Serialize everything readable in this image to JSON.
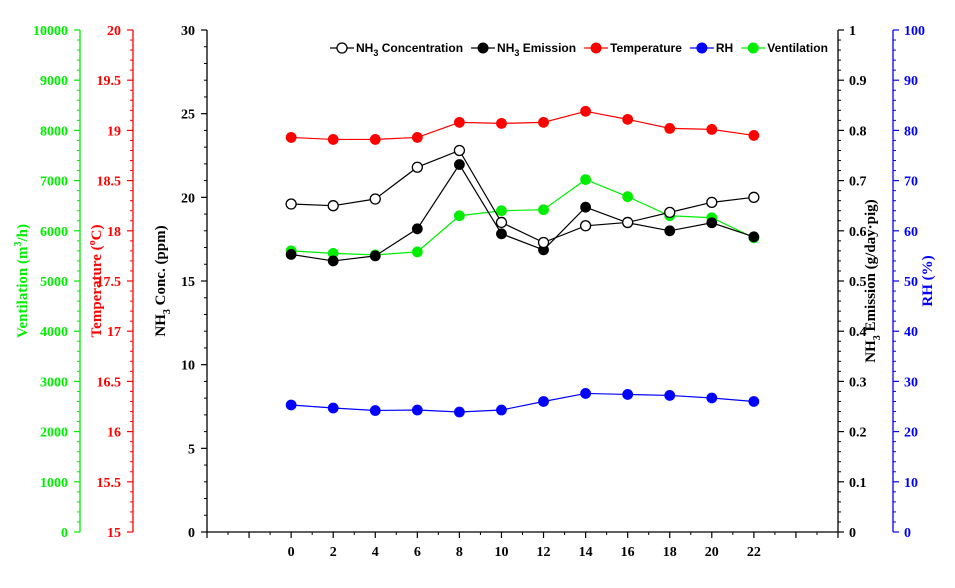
{
  "chart_data": {
    "type": "line",
    "x": [
      0,
      2,
      4,
      6,
      8,
      10,
      12,
      14,
      16,
      18,
      20,
      22
    ],
    "x_ticks": [
      "0",
      "2",
      "4",
      "6",
      "8",
      "10",
      "12",
      "14",
      "16",
      "18",
      "20",
      "22"
    ],
    "xlim": [
      -4,
      26
    ],
    "grid": false,
    "legend_placement": "top-right",
    "colors": {
      "concentration": "#000000",
      "emission": "#000000",
      "temperature": "#ff0000",
      "rh": "#0000ff",
      "ventilation": "#00ee00"
    },
    "axes": {
      "ventilation": {
        "label_main": "Ventilation (m",
        "label_sup": "3",
        "label_end": "/h)",
        "ylim": [
          0,
          10000
        ],
        "ticks": [
          "0",
          "1000",
          "2000",
          "3000",
          "4000",
          "5000",
          "6000",
          "7000",
          "8000",
          "9000",
          "10000"
        ]
      },
      "temperature": {
        "label_main": "Temperature (",
        "label_sup": "o",
        "label_end": "C)",
        "ylim": [
          15,
          20
        ],
        "ticks": [
          "15",
          "15.5",
          "16",
          "16.5",
          "17",
          "17.5",
          "18",
          "18.5",
          "19",
          "19.5",
          "20"
        ]
      },
      "concentration": {
        "label_main": "NH",
        "label_sub": "3",
        "label_end": " Conc. (ppm)",
        "ylim": [
          0,
          30
        ],
        "ticks": [
          "0",
          "5",
          "10",
          "15",
          "20",
          "25",
          "30"
        ]
      },
      "emission": {
        "label_main": "NH",
        "label_sub": "3",
        "label_end": " Emission (g/day·pig)",
        "ylim": [
          0,
          1
        ],
        "ticks": [
          "0",
          "0.1",
          "0.2",
          "0.3",
          "0.4",
          "0.5",
          "0.6",
          "0.7",
          "0.8",
          "0.9",
          "1"
        ]
      },
      "rh": {
        "label": "RH (%)",
        "ylim": [
          0,
          100
        ],
        "ticks": [
          "0",
          "10",
          "20",
          "30",
          "40",
          "50",
          "60",
          "70",
          "80",
          "90",
          "100"
        ]
      }
    },
    "series": [
      {
        "key": "concentration",
        "name_main": "NH",
        "name_sub": "3",
        "name_end": " Concentration",
        "axis": "concentration",
        "marker": "open-circle",
        "values": [
          19.6,
          19.5,
          19.9,
          21.8,
          22.8,
          18.5,
          17.3,
          18.3,
          18.5,
          19.1,
          19.7,
          20.0
        ]
      },
      {
        "key": "emission",
        "name_main": "NH",
        "name_sub": "3",
        "name_end": " Emission",
        "axis": "emission",
        "marker": "filled-circle",
        "values": [
          0.553,
          0.54,
          0.55,
          0.604,
          0.732,
          0.594,
          0.562,
          0.647,
          0.616,
          0.6,
          0.616,
          0.588
        ]
      },
      {
        "key": "temperature",
        "name": "Temperature",
        "axis": "temperature",
        "marker": "filled-circle",
        "values": [
          18.93,
          18.91,
          18.91,
          18.93,
          19.08,
          19.07,
          19.08,
          19.19,
          19.11,
          19.02,
          19.01,
          18.95
        ]
      },
      {
        "key": "rh",
        "name": "RH",
        "axis": "rh",
        "marker": "filled-circle",
        "values": [
          25.3,
          24.7,
          24.2,
          24.3,
          23.9,
          24.3,
          26.0,
          27.6,
          27.4,
          27.2,
          26.7,
          26.0
        ]
      },
      {
        "key": "ventilation",
        "name": "Ventilation",
        "axis": "ventilation",
        "marker": "filled-circle",
        "values": [
          5600,
          5550,
          5520,
          5580,
          6300,
          6400,
          6420,
          7020,
          6680,
          6300,
          6260,
          5860
        ]
      }
    ]
  }
}
